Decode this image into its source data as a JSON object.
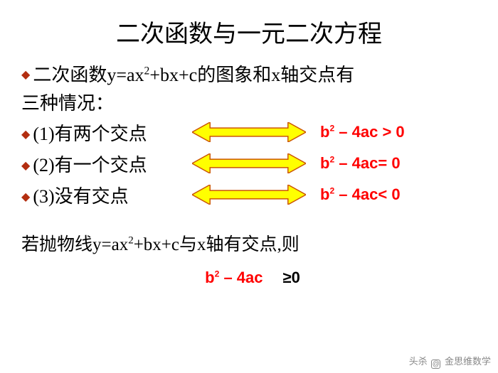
{
  "title": "二次函数与一元二次方程",
  "intro_line1_prefix": "二次函数y=ax",
  "intro_line1_exp": "2",
  "intro_line1_suffix": "+bx+c的图象和x轴交点有",
  "intro_line2": "三种情况：",
  "rows": [
    {
      "label": "(1)有两个交点",
      "formula_html": "b<sup>2</sup> – 4ac > 0"
    },
    {
      "label": "(2)有一个交点",
      "formula_html": "b<sup>2</sup> – 4ac= 0"
    },
    {
      "label": "(3)没有交点",
      "formula_html": "b<sup>2</sup> – 4ac< 0"
    }
  ],
  "bottom_prefix": "若抛物线y=ax",
  "bottom_exp": "2",
  "bottom_suffix": "+bx+c与x轴有交点,则",
  "bottom_formula_html": "b<sup>2</sup> – 4ac",
  "bottom_ge": "≥0",
  "arrow": {
    "fill": "#ffff00",
    "stroke": "#cc5500",
    "stroke_width": 1.5,
    "width": 160,
    "height": 28
  },
  "colors": {
    "bullet": "#b32e10",
    "formula": "#ff0000",
    "text": "#000000",
    "background": "#ffffff"
  },
  "watermark": {
    "left": "头杀",
    "right": "金思维数学",
    "icon": "@"
  }
}
